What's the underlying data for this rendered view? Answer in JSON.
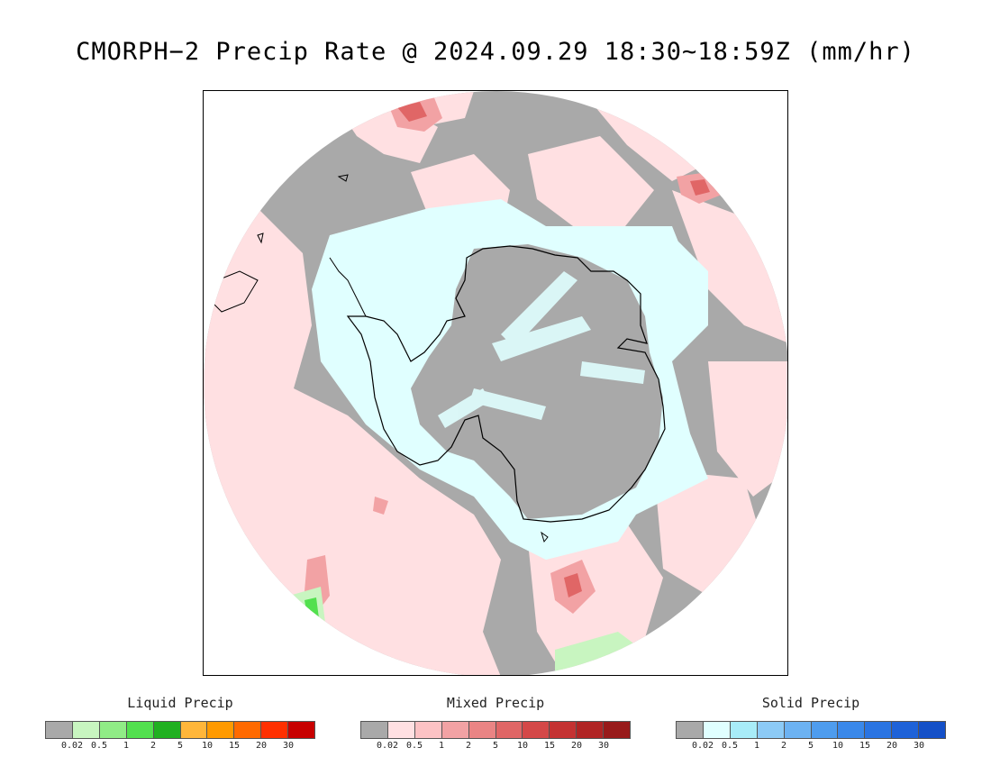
{
  "title": "CMORPH−2 Precip Rate @ 2024.09.29 18:30~18:59Z (mm/hr)",
  "map": {
    "background_color": "#a9a9a9",
    "coastline_color": "#000000",
    "continent": "Antarctica"
  },
  "legends": [
    {
      "title": "Liquid Precip",
      "colors": [
        "#a9a9a9",
        "#c8f5c0",
        "#90ec86",
        "#52e04e",
        "#20b020",
        "#ffb63a",
        "#ff9a00",
        "#ff6a00",
        "#ff3000",
        "#c80000"
      ],
      "ticks": [
        "0.02",
        "0.5",
        "1",
        "2",
        "5",
        "10",
        "15",
        "20",
        "30"
      ]
    },
    {
      "title": "Mixed Precip",
      "colors": [
        "#a9a9a9",
        "#ffe0e2",
        "#fcc2c4",
        "#f2a2a4",
        "#ea8484",
        "#e06666",
        "#d44848",
        "#c43232",
        "#b02424",
        "#981a1a"
      ],
      "ticks": [
        "0.02",
        "0.5",
        "1",
        "2",
        "5",
        "10",
        "15",
        "20",
        "30"
      ]
    },
    {
      "title": "Solid Precip",
      "colors": [
        "#a9a9a9",
        "#e0ffff",
        "#a8ecf8",
        "#8ccaf6",
        "#6cb2f2",
        "#4e9cee",
        "#3a88ea",
        "#2a74e2",
        "#1e62d8",
        "#1450c8"
      ],
      "ticks": [
        "0.02",
        "0.5",
        "1",
        "2",
        "5",
        "10",
        "15",
        "20",
        "30"
      ]
    }
  ]
}
